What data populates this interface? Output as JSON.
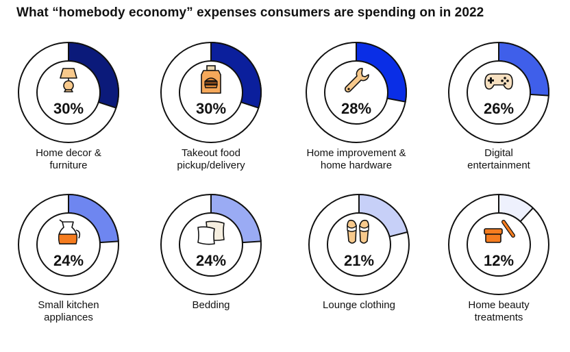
{
  "title": "What “homebody economy” expenses consumers are spending on in 2022",
  "chart_data": {
    "type": "pie",
    "items": [
      {
        "label_lines": [
          "Home decor &",
          "furniture"
        ],
        "value": 30,
        "pct_text": "30%",
        "color": "#0b1a7a",
        "icon": "lamp-icon"
      },
      {
        "label_lines": [
          "Takeout food",
          "pickup/delivery"
        ],
        "value": 30,
        "pct_text": "30%",
        "color": "#0b1f9c",
        "icon": "takeout-bag-icon"
      },
      {
        "label_lines": [
          "Home improvement &",
          "home hardware"
        ],
        "value": 28,
        "pct_text": "28%",
        "color": "#0a2ee6",
        "icon": "wrench-icon"
      },
      {
        "label_lines": [
          "Digital",
          "entertainment"
        ],
        "value": 26,
        "pct_text": "26%",
        "color": "#3f5fea",
        "icon": "gamepad-icon"
      },
      {
        "label_lines": [
          "Small kitchen",
          "appliances"
        ],
        "value": 24,
        "pct_text": "24%",
        "color": "#6e86f0",
        "icon": "coffee-pot-icon"
      },
      {
        "label_lines": [
          "Bedding"
        ],
        "value": 24,
        "pct_text": "24%",
        "color": "#9aabf4",
        "icon": "pillows-icon"
      },
      {
        "label_lines": [
          "Lounge clothing"
        ],
        "value": 21,
        "pct_text": "21%",
        "color": "#c7d0f8",
        "icon": "slippers-icon"
      },
      {
        "label_lines": [
          "Home beauty",
          "treatments"
        ],
        "value": 12,
        "pct_text": "12%",
        "color": "#eef1fd",
        "icon": "beauty-jar-icon"
      }
    ]
  }
}
